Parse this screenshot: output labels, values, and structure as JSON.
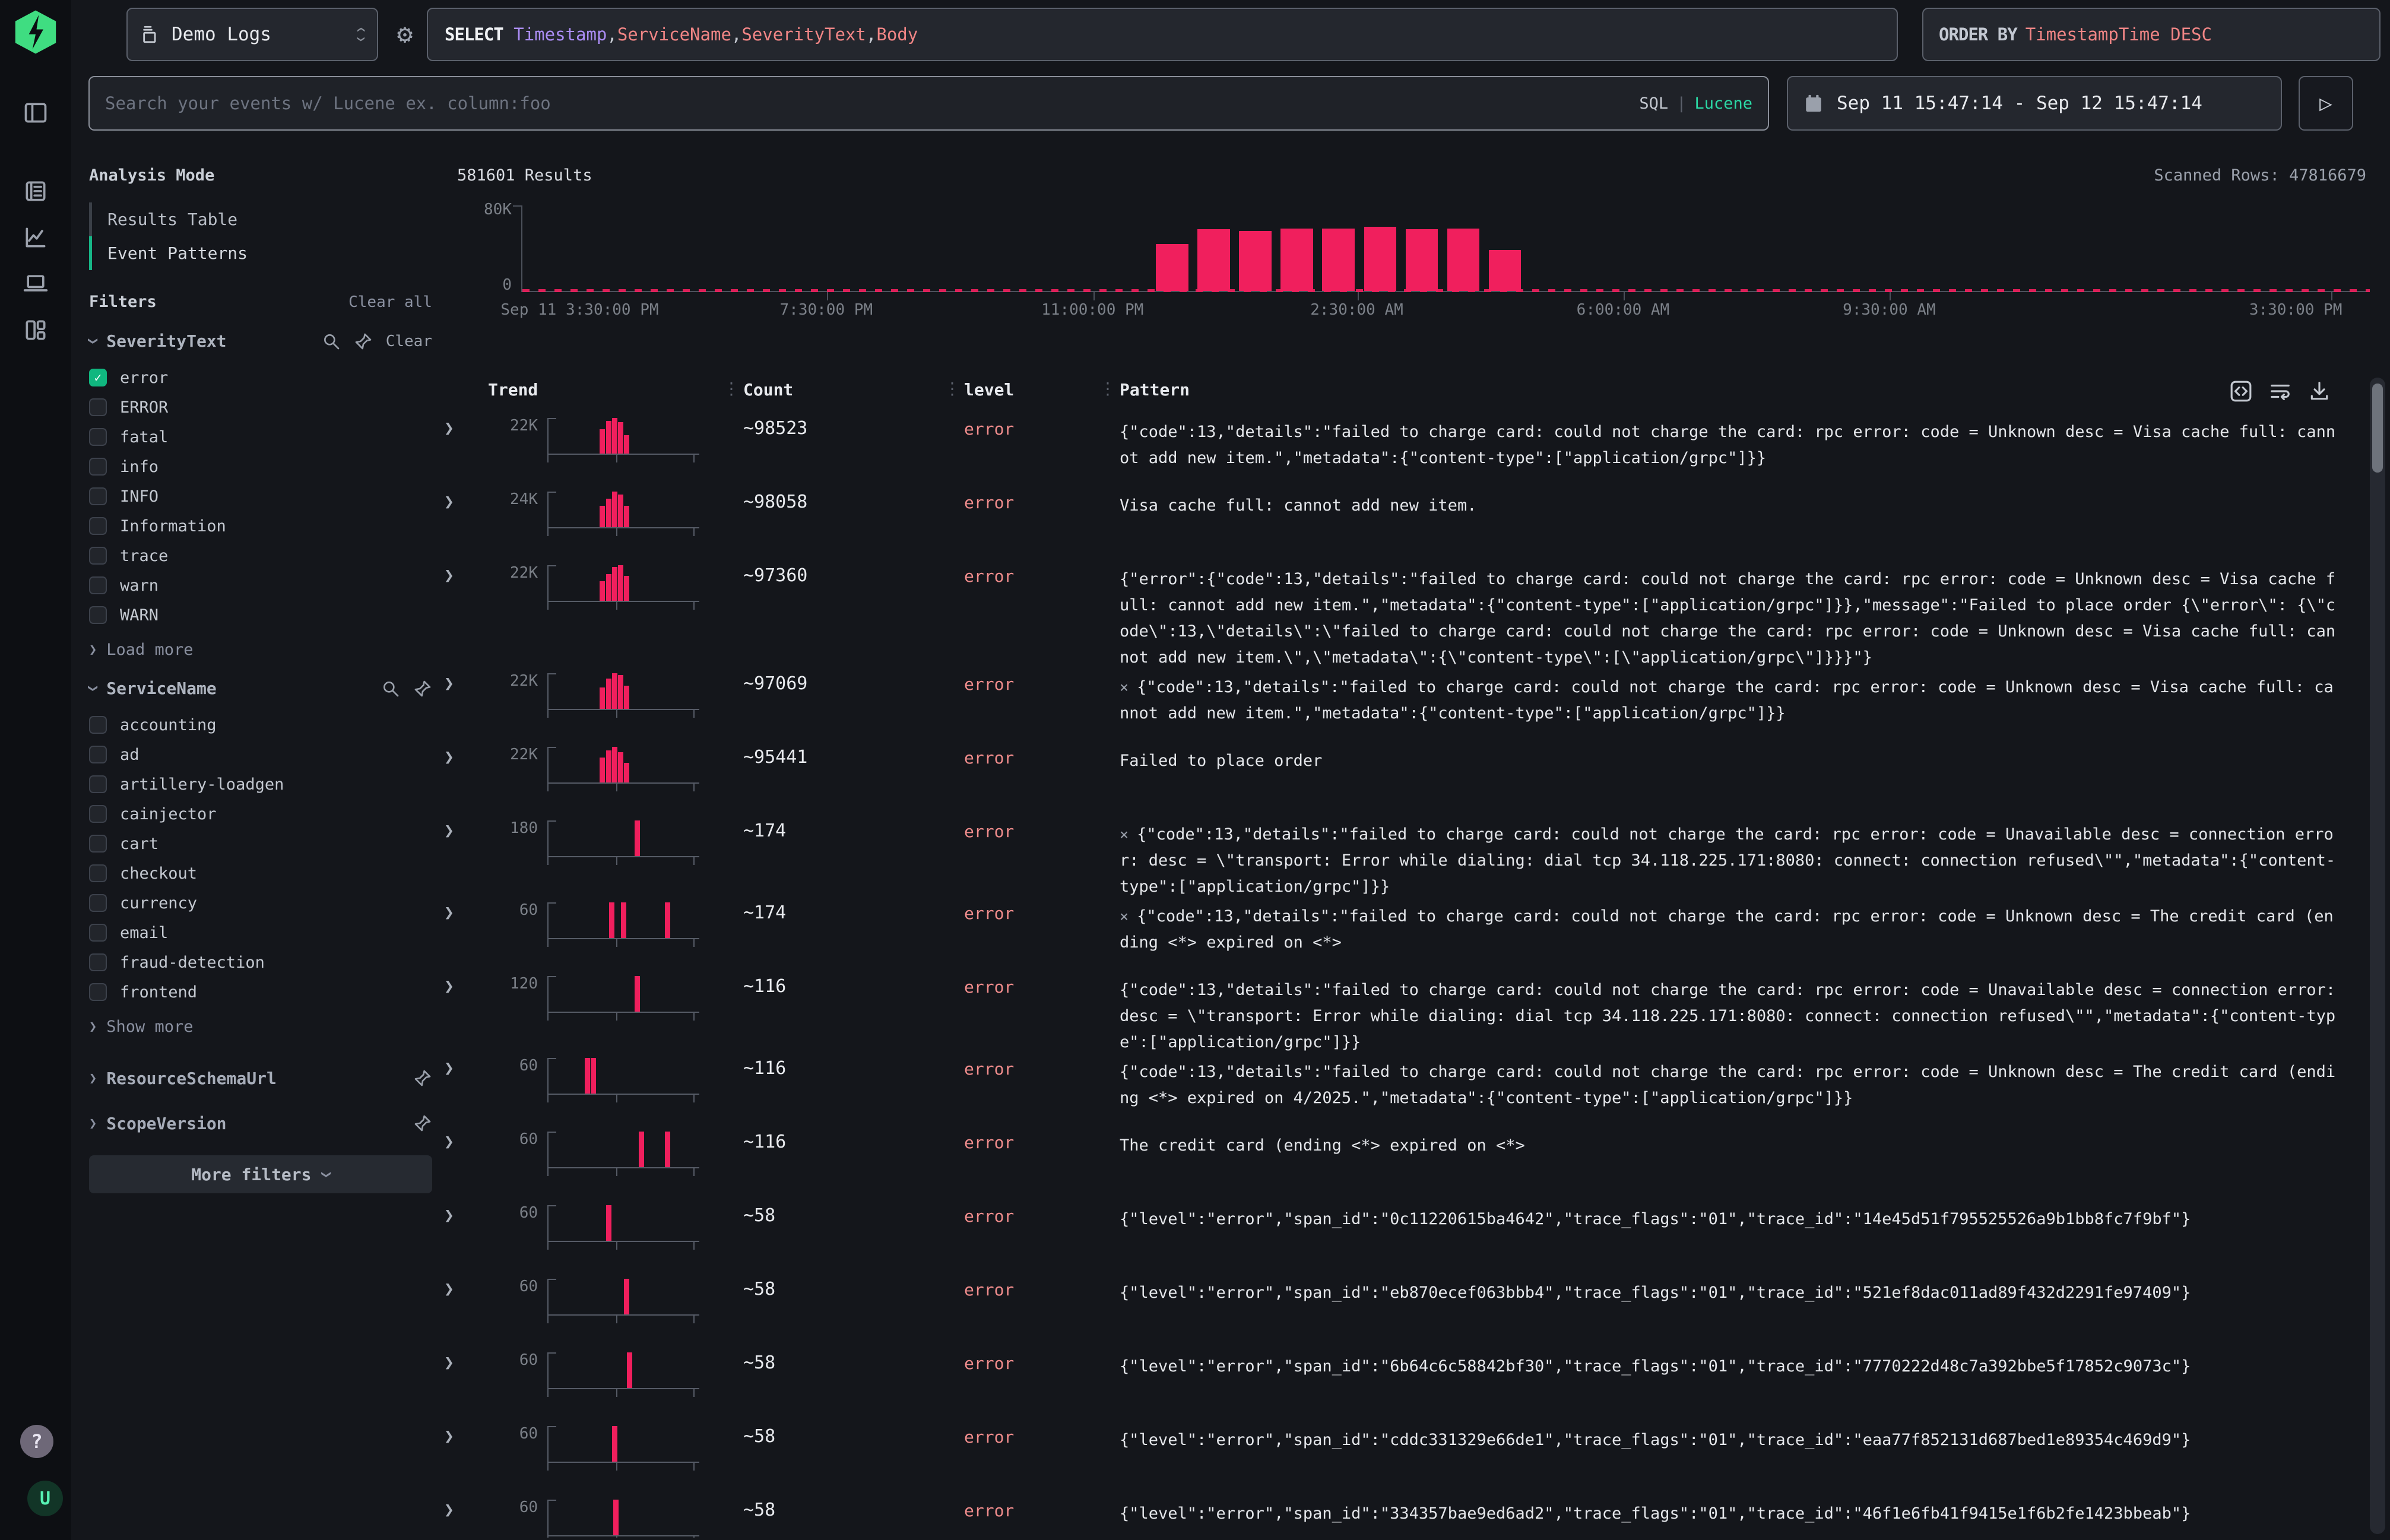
{
  "rail": {
    "help": "?",
    "avatar": "U"
  },
  "topbar": {
    "source_label": "Demo Logs",
    "select_kw": "SELECT",
    "sep": ", ",
    "c1": "Timestamp",
    "c2": "ServiceName",
    "c3": "SeverityText",
    "c4": "Body",
    "order_kw": "ORDER BY",
    "order_val": "TimestampTime DESC"
  },
  "search": {
    "placeholder": "Search your events w/ Lucene ex. column:foo",
    "sql": "SQL",
    "divider": "|",
    "lucene": "Lucene"
  },
  "timerange": {
    "value": "Sep 11 15:47:14 - Sep 12 15:47:14"
  },
  "run": {
    "glyph": "▷"
  },
  "sidebar": {
    "analysis_mode_title": "Analysis Mode",
    "modes": [
      {
        "label": "Results Table",
        "active": false
      },
      {
        "label": "Event Patterns",
        "active": true
      }
    ],
    "filters_title": "Filters",
    "clear_all": "Clear all",
    "groups": [
      {
        "name": "SeverityText",
        "clear": "Clear",
        "more": "Load more",
        "items": [
          {
            "label": "error",
            "checked": true
          },
          {
            "label": "ERROR",
            "checked": false
          },
          {
            "label": "fatal",
            "checked": false
          },
          {
            "label": "info",
            "checked": false
          },
          {
            "label": "INFO",
            "checked": false
          },
          {
            "label": "Information",
            "checked": false
          },
          {
            "label": "trace",
            "checked": false
          },
          {
            "label": "warn",
            "checked": false
          },
          {
            "label": "WARN",
            "checked": false
          }
        ]
      },
      {
        "name": "ServiceName",
        "clear": "",
        "more": "Show more",
        "items": [
          {
            "label": "accounting",
            "checked": false
          },
          {
            "label": "ad",
            "checked": false
          },
          {
            "label": "artillery-loadgen",
            "checked": false
          },
          {
            "label": "cainjector",
            "checked": false
          },
          {
            "label": "cart",
            "checked": false
          },
          {
            "label": "checkout",
            "checked": false
          },
          {
            "label": "currency",
            "checked": false
          },
          {
            "label": "email",
            "checked": false
          },
          {
            "label": "fraud-detection",
            "checked": false
          },
          {
            "label": "frontend",
            "checked": false
          }
        ]
      }
    ],
    "collapsed_groups": [
      "ResourceSchemaUrl",
      "ScopeVersion"
    ],
    "more_filters": "More filters"
  },
  "results": {
    "count": "581601 Results",
    "scanned": "Scanned Rows: 47816679"
  },
  "chart_data": {
    "type": "bar",
    "title": "581601 Results",
    "ylim": [
      0,
      80000
    ],
    "yticks": [
      "80K",
      "0"
    ],
    "bar_color": "#f01f5d",
    "xticks": [
      {
        "label": "Sep 11 3:30:00 PM",
        "x": 0.0
      },
      {
        "label": "7:30:00 PM",
        "x": 0.165
      },
      {
        "label": "11:00:00 PM",
        "x": 0.309
      },
      {
        "label": "2:30:00 AM",
        "x": 0.452
      },
      {
        "label": "6:00:00 AM",
        "x": 0.596
      },
      {
        "label": "9:30:00 AM",
        "x": 0.74
      },
      {
        "label": "3:30:00 PM",
        "x": 0.979
      }
    ],
    "bars": [
      {
        "x": 0.343,
        "v": 44000
      },
      {
        "x": 0.3655,
        "v": 57600
      },
      {
        "x": 0.388,
        "v": 56000
      },
      {
        "x": 0.4105,
        "v": 58400
      },
      {
        "x": 0.433,
        "v": 58400
      },
      {
        "x": 0.4555,
        "v": 60000
      },
      {
        "x": 0.478,
        "v": 57600
      },
      {
        "x": 0.5005,
        "v": 58400
      },
      {
        "x": 0.523,
        "v": 38400
      }
    ],
    "baseline_dashes": true
  },
  "table": {
    "columns": [
      "Trend",
      "Count",
      "level",
      "Pattern"
    ],
    "rows": [
      {
        "trend_max": "22K",
        "bars": [
          [
            0.34,
            0.68
          ],
          [
            0.38,
            0.92
          ],
          [
            0.42,
            1.0
          ],
          [
            0.46,
            0.88
          ],
          [
            0.5,
            0.52
          ]
        ],
        "count": "~98523",
        "level": "error",
        "x": false,
        "pattern": "{\"code\":13,\"details\":\"failed to charge card: could not charge the card: rpc error: code = Unknown desc = Visa cache full: cannot add new item.\",\"metadata\":{\"content-type\":[\"application/grpc\"]}}"
      },
      {
        "trend_max": "24K",
        "bars": [
          [
            0.34,
            0.6
          ],
          [
            0.38,
            0.8
          ],
          [
            0.42,
            1.0
          ],
          [
            0.46,
            0.92
          ],
          [
            0.5,
            0.6
          ]
        ],
        "count": "~98058",
        "level": "error",
        "x": false,
        "pattern": "Visa cache full: cannot add new item."
      },
      {
        "trend_max": "22K",
        "bars": [
          [
            0.34,
            0.55
          ],
          [
            0.38,
            0.75
          ],
          [
            0.42,
            0.95
          ],
          [
            0.46,
            1.0
          ],
          [
            0.5,
            0.7
          ]
        ],
        "count": "~97360",
        "level": "error",
        "x": false,
        "pattern": "{\"error\":{\"code\":13,\"details\":\"failed to charge card: could not charge the card: rpc error: code = Unknown desc = Visa cache full: cannot add new item.\",\"metadata\":{\"content-type\":[\"application/grpc\"]}},\"message\":\"Failed to place order {\\\"error\\\": {\\\"code\\\":13,\\\"details\\\":\\\"failed to charge card: could not charge the card: rpc error: code = Unknown desc = Visa cache full: cannot add new item.\\\",\\\"metadata\\\":{\\\"content-type\\\":[\\\"application/grpc\\\"]}}}\"}"
      },
      {
        "trend_max": "22K",
        "bars": [
          [
            0.34,
            0.6
          ],
          [
            0.38,
            0.85
          ],
          [
            0.42,
            1.0
          ],
          [
            0.46,
            0.95
          ],
          [
            0.5,
            0.65
          ]
        ],
        "count": "~97069",
        "level": "error",
        "x": true,
        "pattern": "{\"code\":13,\"details\":\"failed to charge card: could not charge the card: rpc error: code = Unknown desc = Visa cache full: cannot add new item.\",\"metadata\":{\"content-type\":[\"application/grpc\"]}}"
      },
      {
        "trend_max": "22K",
        "bars": [
          [
            0.34,
            0.7
          ],
          [
            0.38,
            0.9
          ],
          [
            0.42,
            1.0
          ],
          [
            0.46,
            0.85
          ],
          [
            0.5,
            0.55
          ]
        ],
        "count": "~95441",
        "level": "error",
        "x": false,
        "pattern": "Failed to place order"
      },
      {
        "trend_max": "180",
        "bars": [
          [
            0.57,
            1.0
          ]
        ],
        "count": "~174",
        "level": "error",
        "x": true,
        "pattern": "{\"code\":13,\"details\":\"failed to charge card: could not charge the card: rpc error: code = Unavailable desc = connection error: desc = \\\"transport: Error while dialing: dial tcp 34.118.225.171:8080: connect: connection refused\\\"\",\"metadata\":{\"content-type\":[\"application/grpc\"]}}"
      },
      {
        "trend_max": "60",
        "bars": [
          [
            0.4,
            1.0
          ],
          [
            0.48,
            1.0
          ],
          [
            0.77,
            1.0
          ]
        ],
        "count": "~174",
        "level": "error",
        "x": true,
        "pattern": "{\"code\":13,\"details\":\"failed to charge card: could not charge the card: rpc error: code = Unknown desc = The credit card (ending <*> expired on <*>"
      },
      {
        "trend_max": "120",
        "bars": [
          [
            0.57,
            1.0
          ]
        ],
        "count": "~116",
        "level": "error",
        "x": false,
        "pattern": "{\"code\":13,\"details\":\"failed to charge card: could not charge the card: rpc error: code = Unavailable desc = connection error: desc = \\\"transport: Error while dialing: dial tcp 34.118.225.171:8080: connect: connection refused\\\"\",\"metadata\":{\"content-type\":[\"application/grpc\"]}}"
      },
      {
        "trend_max": "60",
        "bars": [
          [
            0.24,
            1.0
          ],
          [
            0.28,
            1.0
          ]
        ],
        "count": "~116",
        "level": "error",
        "x": false,
        "pattern": "{\"code\":13,\"details\":\"failed to charge card: could not charge the card: rpc error: code = Unknown desc = The credit card (ending <*> expired on 4/2025.\",\"metadata\":{\"content-type\":[\"application/grpc\"]}}"
      },
      {
        "trend_max": "60",
        "bars": [
          [
            0.6,
            1.0
          ],
          [
            0.77,
            1.0
          ]
        ],
        "count": "~116",
        "level": "error",
        "x": false,
        "pattern": "The credit card (ending <*> expired on <*>"
      },
      {
        "trend_max": "60",
        "bars": [
          [
            0.38,
            1.0
          ]
        ],
        "count": "~58",
        "level": "error",
        "x": false,
        "pattern": "{\"level\":\"error\",\"span_id\":\"0c11220615ba4642\",\"trace_flags\":\"01\",\"trace_id\":\"14e45d51f795525526a9b1bb8fc7f9bf\"}"
      },
      {
        "trend_max": "60",
        "bars": [
          [
            0.5,
            1.0
          ]
        ],
        "count": "~58",
        "level": "error",
        "x": false,
        "pattern": "{\"level\":\"error\",\"span_id\":\"eb870ecef063bbb4\",\"trace_flags\":\"01\",\"trace_id\":\"521ef8dac011ad89f432d2291fe97409\"}"
      },
      {
        "trend_max": "60",
        "bars": [
          [
            0.52,
            1.0
          ]
        ],
        "count": "~58",
        "level": "error",
        "x": false,
        "pattern": "{\"level\":\"error\",\"span_id\":\"6b64c6c58842bf30\",\"trace_flags\":\"01\",\"trace_id\":\"7770222d48c7a392bbe5f17852c9073c\"}"
      },
      {
        "trend_max": "60",
        "bars": [
          [
            0.42,
            1.0
          ]
        ],
        "count": "~58",
        "level": "error",
        "x": false,
        "pattern": "{\"level\":\"error\",\"span_id\":\"cddc331329e66de1\",\"trace_flags\":\"01\",\"trace_id\":\"eaa77f852131d687bed1e89354c469d9\"}"
      },
      {
        "trend_max": "60",
        "bars": [
          [
            0.43,
            1.0
          ]
        ],
        "count": "~58",
        "level": "error",
        "x": false,
        "pattern": "{\"level\":\"error\",\"span_id\":\"334357bae9ed6ad2\",\"trace_flags\":\"01\",\"trace_id\":\"46f1e6fb41f9415e1f6b2fe1423bbeab\"}"
      }
    ]
  }
}
